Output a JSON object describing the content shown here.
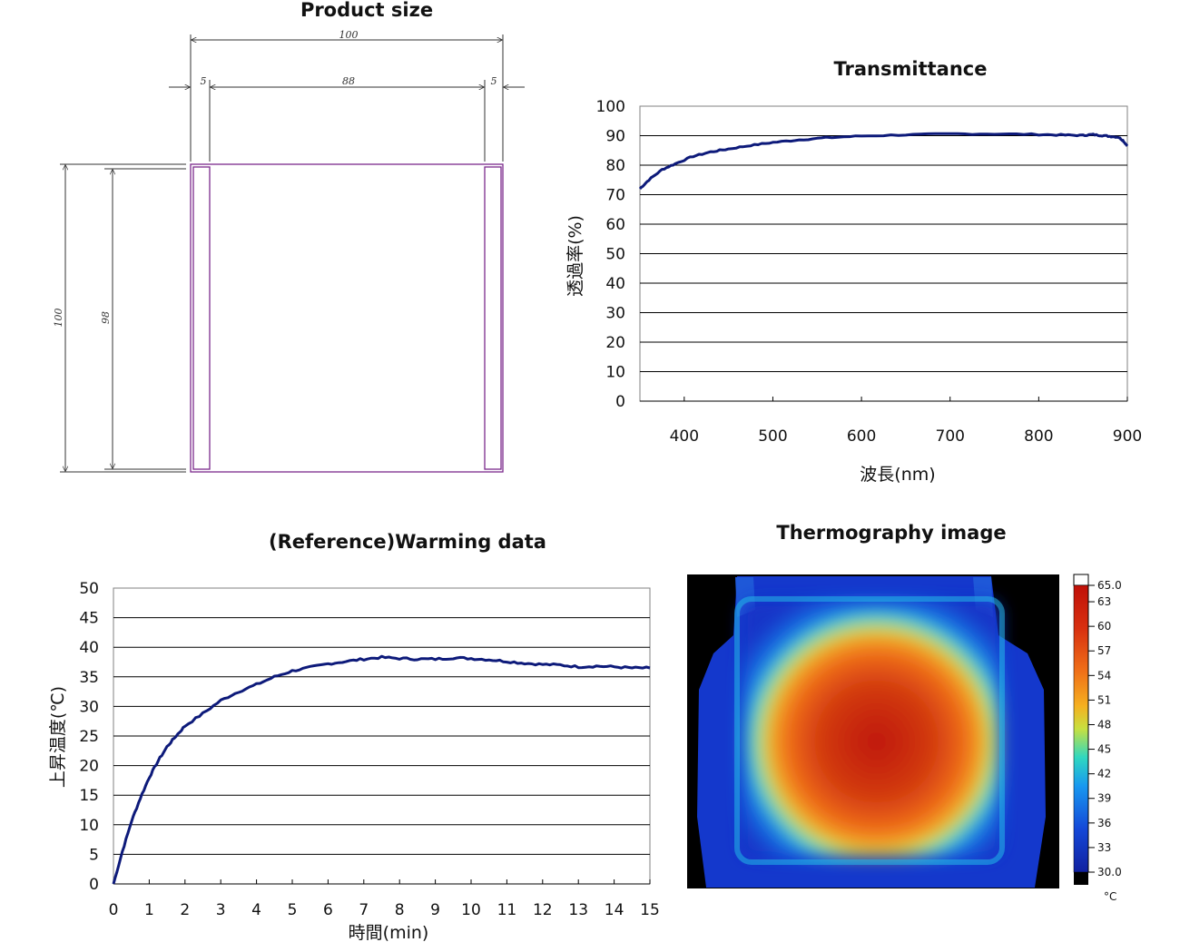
{
  "titles": {
    "product_size": "Product size",
    "transmittance": "Transmittance",
    "warming": "(Reference)Warming data",
    "thermography": "Thermography image"
  },
  "product_size": {
    "overall_width": "100",
    "left_strip": "5",
    "inner_width": "88",
    "right_strip": "5",
    "overall_height": "100",
    "inner_height": "98",
    "outline_color": "#7b2a8c"
  },
  "chart_data": [
    {
      "type": "line",
      "title": "Transmittance",
      "xlabel": "波長(nm)",
      "ylabel": "透過率(%)",
      "xlim": [
        350,
        900
      ],
      "ylim": [
        0,
        100
      ],
      "x_ticks": [
        "400",
        "500",
        "600",
        "700",
        "800",
        "900"
      ],
      "y_ticks": [
        "0",
        "10",
        "20",
        "30",
        "40",
        "50",
        "60",
        "70",
        "80",
        "90",
        "100"
      ],
      "grid": "horizontal",
      "line_color": "#0d1a7a",
      "series": [
        {
          "x": [
            350,
            360,
            375,
            390,
            410,
            430,
            450,
            475,
            500,
            530,
            560,
            600,
            650,
            700,
            750,
            800,
            830,
            850,
            860,
            870,
            880,
            890,
            895,
            900
          ],
          "y": [
            72,
            75,
            78.5,
            80.5,
            83,
            84.5,
            85.5,
            86.7,
            87.7,
            88.6,
            89.3,
            89.9,
            90.3,
            90.6,
            90.6,
            90.4,
            90.2,
            90.1,
            90.4,
            90.1,
            89.8,
            89.5,
            88.4,
            86.5
          ]
        }
      ]
    },
    {
      "type": "line",
      "title": "(Reference)Warming data",
      "xlabel": "時間(min)",
      "ylabel": "上昇温度(℃)",
      "xlim": [
        0,
        15
      ],
      "ylim": [
        0,
        50
      ],
      "x_ticks": [
        "0",
        "1",
        "2",
        "3",
        "4",
        "5",
        "6",
        "7",
        "8",
        "9",
        "10",
        "11",
        "12",
        "13",
        "14",
        "15"
      ],
      "y_ticks": [
        "0",
        "5",
        "10",
        "15",
        "20",
        "25",
        "30",
        "35",
        "40",
        "45",
        "50"
      ],
      "grid": "horizontal",
      "line_color": "#0d1a7a",
      "series": [
        {
          "x": [
            0,
            0.25,
            0.5,
            0.75,
            1.0,
            1.25,
            1.5,
            1.75,
            2.0,
            2.5,
            3.0,
            3.5,
            4.0,
            4.5,
            5.0,
            5.5,
            6.0,
            6.5,
            7.0,
            7.5,
            8.0,
            8.5,
            9.0,
            9.5,
            10.0,
            10.5,
            11.0,
            11.5,
            12.0,
            12.5,
            13.0,
            13.5,
            14.0,
            14.5,
            15.0
          ],
          "y": [
            0,
            5.5,
            10.5,
            14.5,
            18,
            20.8,
            23.2,
            25,
            26.7,
            28.8,
            31,
            32.5,
            33.7,
            35,
            36,
            36.6,
            37.2,
            37.6,
            38,
            38.3,
            38.1,
            38,
            38,
            38.2,
            38.1,
            37.9,
            37.6,
            37.3,
            37.1,
            37,
            36.7,
            36.8,
            36.7,
            36.5,
            36.5
          ]
        }
      ]
    }
  ],
  "thermography": {
    "colorbar_labels": [
      "65.0",
      "63",
      "60",
      "57",
      "54",
      "51",
      "48",
      "45",
      "42",
      "39",
      "36",
      "33",
      "30.0"
    ],
    "unit": "°C",
    "colors": {
      "background": "#000000",
      "cold": "#1235c8",
      "mid": "#35d8c8",
      "warm": "#f0a020",
      "hot": "#c21a08"
    }
  }
}
